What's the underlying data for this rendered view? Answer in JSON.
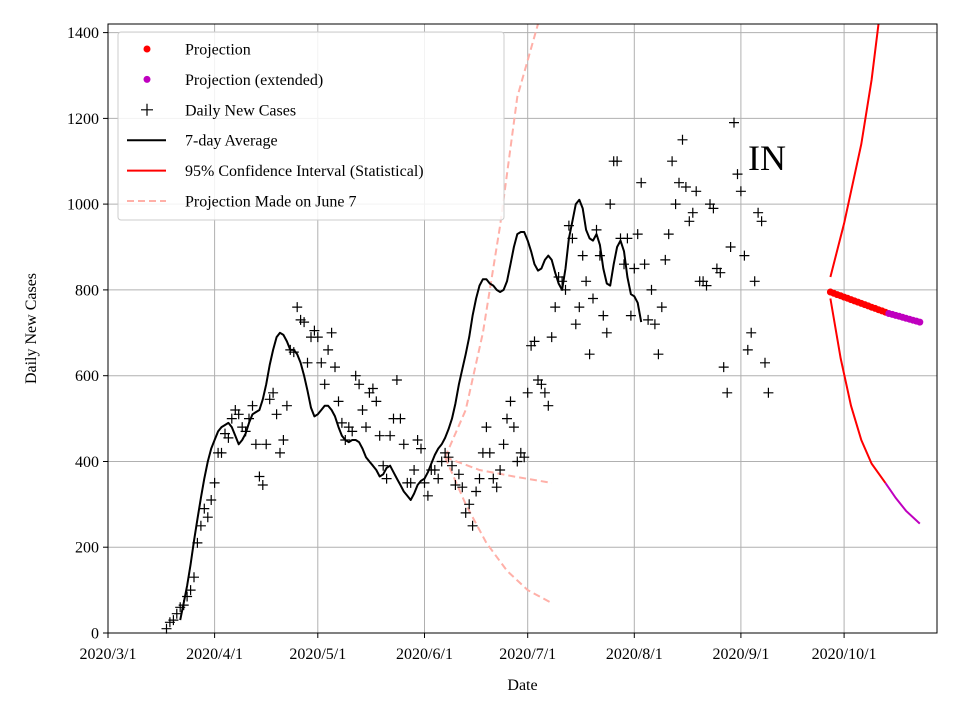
{
  "chart_data": {
    "type": "line",
    "state_label": "IN",
    "xlabel": "Date",
    "ylabel": "Daily New Cases",
    "xlim": [
      "2020-03-01",
      "2020-10-28"
    ],
    "ylim": [
      0,
      1420
    ],
    "x_ticks": [
      {
        "date": "2020-03-01",
        "label": "2020/3/1"
      },
      {
        "date": "2020-04-01",
        "label": "2020/4/1"
      },
      {
        "date": "2020-05-01",
        "label": "2020/5/1"
      },
      {
        "date": "2020-06-01",
        "label": "2020/6/1"
      },
      {
        "date": "2020-07-01",
        "label": "2020/7/1"
      },
      {
        "date": "2020-08-01",
        "label": "2020/8/1"
      },
      {
        "date": "2020-09-01",
        "label": "2020/9/1"
      },
      {
        "date": "2020-10-01",
        "label": "2020/10/1"
      }
    ],
    "y_ticks": [
      0,
      200,
      400,
      600,
      800,
      1000,
      1200,
      1400
    ],
    "grid": true,
    "legend": {
      "position": "top-left",
      "entries": [
        {
          "label": "Projection",
          "marker": "dot",
          "color": "#ff0000"
        },
        {
          "label": "Projection (extended)",
          "marker": "dot",
          "color": "#bf00bf"
        },
        {
          "label": "Daily New Cases",
          "marker": "plus",
          "color": "#000000"
        },
        {
          "label": "7-day Average",
          "marker": "line",
          "color": "#000000"
        },
        {
          "label": "95% Confidence Interval (Statistical)",
          "marker": "line",
          "color": "#ff0000"
        },
        {
          "label": "Projection Made on June 7",
          "marker": "dashed",
          "color": "#ffb0a8"
        }
      ]
    },
    "daily_cases": {
      "start_date": "2020-03-18",
      "values": [
        10,
        25,
        30,
        45,
        60,
        65,
        85,
        100,
        130,
        210,
        250,
        290,
        270,
        310,
        350,
        420,
        420,
        465,
        455,
        500,
        520,
        510,
        480,
        470,
        500,
        530,
        440,
        365,
        345,
        440,
        545,
        560,
        510,
        420,
        450,
        530,
        660,
        655,
        760,
        730,
        725,
        630,
        690,
        705,
        690,
        630,
        580,
        660,
        700,
        620,
        540,
        490,
        450,
        480,
        470,
        600,
        580,
        520,
        480,
        560,
        570,
        540,
        460,
        390,
        360,
        460,
        500,
        590,
        500,
        440,
        350,
        350,
        380,
        450,
        430,
        350,
        320,
        380,
        380,
        360,
        400,
        420,
        410,
        390,
        345,
        370,
        340,
        280,
        300,
        250,
        330,
        360,
        420,
        480,
        420,
        360,
        340,
        380,
        440,
        500,
        540,
        480,
        400,
        420,
        410,
        560,
        670,
        680,
        590,
        580,
        560,
        530,
        690,
        760,
        830,
        820,
        800,
        950,
        920,
        720,
        760,
        880,
        820,
        650,
        780,
        940,
        880,
        740,
        700,
        1000,
        1100,
        1100,
        920,
        860,
        920,
        740,
        850,
        930,
        1050,
        860,
        730,
        800,
        720,
        650,
        760,
        870,
        930,
        1100,
        1000,
        1050,
        1150,
        1040,
        960,
        980,
        1030,
        820,
        820,
        810,
        1000,
        990,
        850,
        840,
        620,
        560,
        900,
        1190,
        1070,
        1030,
        880,
        660,
        700,
        820,
        980,
        960,
        630,
        560
      ]
    },
    "avg7": {
      "start_date": "2020-03-22",
      "values": [
        30,
        70,
        110,
        160,
        215,
        265,
        315,
        360,
        400,
        430,
        450,
        470,
        480,
        485,
        490,
        480,
        460,
        440,
        450,
        465,
        490,
        510,
        515,
        520,
        545,
        580,
        625,
        660,
        690,
        700,
        695,
        680,
        660,
        660,
        650,
        630,
        600,
        565,
        525,
        505,
        510,
        520,
        530,
        530,
        520,
        505,
        480,
        460,
        450,
        445,
        450,
        450,
        445,
        430,
        410,
        400,
        390,
        380,
        365,
        370,
        385,
        390,
        375,
        360,
        345,
        330,
        320,
        310,
        325,
        345,
        355,
        360,
        375,
        395,
        415,
        430,
        440,
        455,
        475,
        500,
        535,
        580,
        615,
        650,
        690,
        740,
        780,
        810,
        825,
        825,
        815,
        810,
        800,
        795,
        800,
        820,
        860,
        900,
        930,
        935,
        935,
        915,
        890,
        860,
        845,
        850,
        870,
        880,
        870,
        840,
        815,
        800,
        850,
        920,
        960,
        1000,
        1010,
        990,
        940,
        920,
        915,
        930,
        905,
        850,
        815,
        810,
        860,
        900,
        915,
        890,
        830,
        790,
        785,
        770,
        725
      ]
    },
    "projection": {
      "start_date": "2020-09-27",
      "end_date": "2020-10-13",
      "start_value": 795,
      "end_value": 748,
      "color": "#ff0000"
    },
    "projection_extended": {
      "start_date": "2020-10-14",
      "end_date": "2020-10-23",
      "start_value": 745,
      "end_value": 725,
      "color": "#bf00bf"
    },
    "ci_upper": {
      "points": [
        [
          "2020-09-27",
          830
        ],
        [
          "2020-10-01",
          955
        ],
        [
          "2020-10-06",
          1140
        ],
        [
          "2020-10-09",
          1290
        ],
        [
          "2020-10-11",
          1420
        ]
      ],
      "color": "#ff0000"
    },
    "ci_lower": {
      "points": [
        [
          "2020-09-27",
          780
        ],
        [
          "2020-09-30",
          640
        ],
        [
          "2020-10-03",
          530
        ],
        [
          "2020-10-06",
          450
        ],
        [
          "2020-10-09",
          395
        ],
        [
          "2020-10-13",
          350
        ]
      ],
      "color": "#ff0000"
    },
    "ci_lower_extended": {
      "points": [
        [
          "2020-10-13",
          350
        ],
        [
          "2020-10-16",
          315
        ],
        [
          "2020-10-19",
          285
        ],
        [
          "2020-10-23",
          255
        ]
      ],
      "color": "#bf00bf"
    },
    "june7_projection": {
      "color": "#ffb0a8",
      "upper": [
        [
          "2020-06-07",
          410
        ],
        [
          "2020-06-13",
          520
        ],
        [
          "2020-06-18",
          700
        ],
        [
          "2020-06-23",
          950
        ],
        [
          "2020-06-28",
          1250
        ],
        [
          "2020-07-04",
          1420
        ]
      ],
      "middle": [
        [
          "2020-06-07",
          410
        ],
        [
          "2020-06-17",
          380
        ],
        [
          "2020-06-27",
          365
        ],
        [
          "2020-07-08",
          350
        ]
      ],
      "lower": [
        [
          "2020-06-07",
          410
        ],
        [
          "2020-06-13",
          300
        ],
        [
          "2020-06-19",
          210
        ],
        [
          "2020-06-25",
          145
        ],
        [
          "2020-07-01",
          100
        ],
        [
          "2020-07-08",
          70
        ]
      ]
    }
  }
}
